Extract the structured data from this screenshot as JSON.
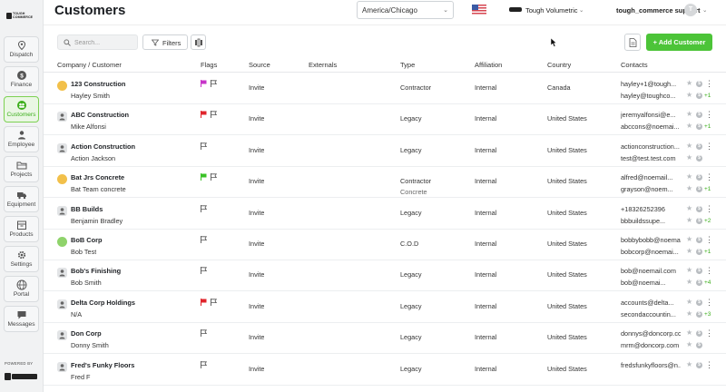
{
  "sidebar": {
    "logo_text": "TOUGH\nCOMMERCE",
    "items": [
      {
        "label": "Dispatch",
        "icon": "map-pin-icon"
      },
      {
        "label": "Finance",
        "icon": "dollar-icon"
      },
      {
        "label": "Customers",
        "icon": "users-icon",
        "active": true
      },
      {
        "label": "Employee",
        "icon": "person-icon"
      },
      {
        "label": "Projects",
        "icon": "folder-icon"
      },
      {
        "label": "Equipment",
        "icon": "truck-icon"
      },
      {
        "label": "Products",
        "icon": "box-icon"
      },
      {
        "label": "Settings",
        "icon": "gear-icon"
      },
      {
        "label": "Portal",
        "icon": "globe-icon"
      },
      {
        "label": "Messages",
        "icon": "chat-icon"
      }
    ],
    "powered_by": "POWERED BY",
    "bottom_logo_text": "TOUGH COMMERCE"
  },
  "header": {
    "title": "Customers",
    "timezone": "America/Chicago",
    "company_name": "Tough Volumetric",
    "user_name": "tough_commerce support",
    "avatar_initial": "T"
  },
  "toolbar": {
    "search_placeholder": "Search...",
    "filters_label": "Filters",
    "add_label": "+ Add Customer"
  },
  "table": {
    "columns": [
      "Company / Customer",
      "Flags",
      "Source",
      "Externals",
      "Type",
      "Affiliation",
      "Country",
      "Contacts"
    ],
    "rows": [
      {
        "company": "123 Construction",
        "contact": "Hayley Smith",
        "flag": "purple",
        "source": "Invite",
        "type": "Contractor",
        "type2": "",
        "affiliation": "Internal",
        "country": "Canada",
        "contact1": "hayley+1@tough...",
        "contact2": "hayley@toughco...",
        "extra": "+1",
        "icon": "color"
      },
      {
        "company": "ABC Construction",
        "contact": "Mike Alfonsi",
        "flag": "red",
        "source": "Invite",
        "type": "Legacy",
        "type2": "",
        "affiliation": "Internal",
        "country": "United States",
        "contact1": "jeremyalfonsi@e...",
        "contact2": "abccons@noemai...",
        "extra": "+1",
        "icon": "grey"
      },
      {
        "company": "Action Construction",
        "contact": "Action Jackson",
        "flag": "",
        "source": "Invite",
        "type": "Legacy",
        "type2": "",
        "affiliation": "Internal",
        "country": "United States",
        "contact1": "actionconstruction...",
        "contact2": "test@test.test.com",
        "extra": "",
        "icon": "grey"
      },
      {
        "company": "Bat Jrs Concrete",
        "contact": "Bat Team concrete",
        "flag": "green",
        "source": "Invite",
        "type": "Contractor",
        "type2": "Concrete",
        "affiliation": "Internal",
        "country": "United States",
        "contact1": "alfred@noemail...",
        "contact2": "grayson@noem...",
        "extra": "+1",
        "icon": "color"
      },
      {
        "company": "BB Builds",
        "contact": "Benjamin Bradley",
        "flag": "",
        "source": "Invite",
        "type": "Legacy",
        "type2": "",
        "affiliation": "Internal",
        "country": "United States",
        "contact1": "+18326252396",
        "contact2": "bbbuildssupe...",
        "extra": "+2",
        "icon": "grey"
      },
      {
        "company": "BoB Corp",
        "contact": "Bob Test",
        "flag": "",
        "source": "Invite",
        "type": "C.O.D",
        "type2": "",
        "affiliation": "Internal",
        "country": "United States",
        "contact1": "bobbybobb@noema...",
        "contact2": "bobcorp@noemai...",
        "extra": "+1",
        "icon": "green"
      },
      {
        "company": "Bob's Finishing",
        "contact": "Bob Smith",
        "flag": "",
        "source": "Invite",
        "type": "Legacy",
        "type2": "",
        "affiliation": "Internal",
        "country": "United States",
        "contact1": "bob@noemail.com",
        "contact2": "bob@noemai...",
        "extra": "+4",
        "icon": "grey"
      },
      {
        "company": "Delta Corp Holdings",
        "contact": "N/A",
        "flag": "red",
        "source": "Invite",
        "type": "Legacy",
        "type2": "",
        "affiliation": "Internal",
        "country": "United States",
        "contact1": "accounts@delta...",
        "contact2": "secondaccountin...",
        "extra": "+3",
        "icon": "grey"
      },
      {
        "company": "Don Corp",
        "contact": "Donny Smith",
        "flag": "",
        "source": "Invite",
        "type": "Legacy",
        "type2": "",
        "affiliation": "Internal",
        "country": "United States",
        "contact1": "donnys@doncorp.co...",
        "contact2": "mrm@doncorp.com",
        "extra": "",
        "icon": "grey"
      },
      {
        "company": "Fred's Funky Floors",
        "contact": "Fred F",
        "flag": "",
        "source": "Invite",
        "type": "Legacy",
        "type2": "",
        "affiliation": "Internal",
        "country": "United States",
        "contact1": "fredsfunkyfloors@n...",
        "contact2": "",
        "extra": "",
        "icon": "grey"
      }
    ]
  },
  "colors": {
    "accent": "#4cc438",
    "active_nav_bg": "#eaf7e4",
    "flag_purple": "#c733c9",
    "flag_red": "#e0242b",
    "flag_green": "#39c226"
  }
}
